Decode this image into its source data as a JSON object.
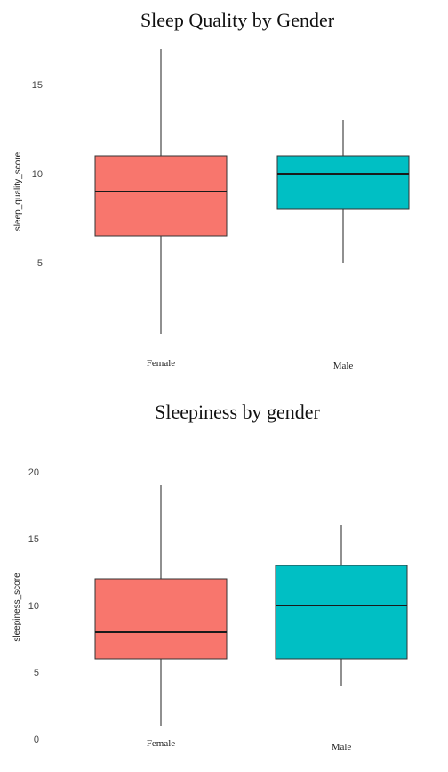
{
  "chart_data": [
    {
      "type": "boxplot",
      "title": "Sleep Quality by Gender",
      "xlabel": "",
      "ylabel": "sleep_quality_score",
      "yticks": [
        5,
        10,
        15
      ],
      "ylim": [
        0.5,
        17.5
      ],
      "grid": false,
      "legend": "none",
      "categories": [
        "Female",
        "Male"
      ],
      "boxes": [
        {
          "category": "Female",
          "min": 1,
          "q1": 6.5,
          "median": 9,
          "q3": 11,
          "max": 17,
          "color": "#F8766D"
        },
        {
          "category": "Male",
          "min": 5,
          "q1": 8,
          "median": 10,
          "q3": 11,
          "max": 13,
          "color": "#00BFC4"
        }
      ]
    },
    {
      "type": "boxplot",
      "title": "Sleepiness by gender",
      "xlabel": "",
      "ylabel": "sleepiness_score",
      "yticks": [
        0,
        5,
        10,
        15,
        20
      ],
      "ylim": [
        0,
        20
      ],
      "grid": false,
      "legend": "none",
      "categories": [
        "Female",
        "Male"
      ],
      "boxes": [
        {
          "category": "Female",
          "min": 1,
          "q1": 6,
          "median": 8,
          "q3": 12,
          "max": 19,
          "color": "#F8766D"
        },
        {
          "category": "Male",
          "min": 4,
          "q1": 6,
          "median": 10,
          "q3": 13,
          "max": 16,
          "color": "#00BFC4"
        }
      ]
    }
  ]
}
